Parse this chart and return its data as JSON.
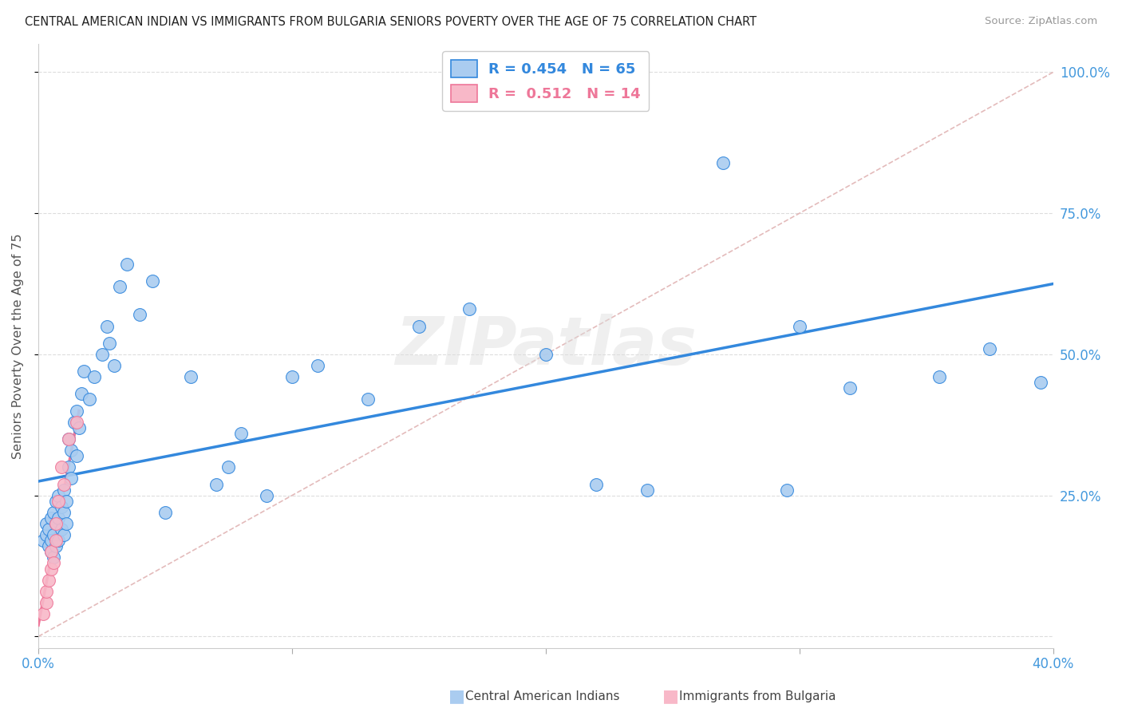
{
  "title": "CENTRAL AMERICAN INDIAN VS IMMIGRANTS FROM BULGARIA SENIORS POVERTY OVER THE AGE OF 75 CORRELATION CHART",
  "source": "Source: ZipAtlas.com",
  "ylabel": "Seniors Poverty Over the Age of 75",
  "y_ticks": [
    0.0,
    0.25,
    0.5,
    0.75,
    1.0
  ],
  "y_tick_labels_right": [
    "",
    "25.0%",
    "50.0%",
    "75.0%",
    "100.0%"
  ],
  "x_range": [
    0.0,
    0.4
  ],
  "y_range": [
    -0.02,
    1.05
  ],
  "legend_r1": "R = 0.454",
  "legend_n1": "N = 65",
  "legend_r2": "R =  0.512",
  "legend_n2": "N = 14",
  "color_blue": "#aaccf0",
  "color_pink": "#f8b8c8",
  "line_blue": "#3388dd",
  "line_pink": "#ee7799",
  "line_diag_color": "#ddaaaa",
  "watermark": "ZIPatlas",
  "blue_x": [
    0.002,
    0.003,
    0.003,
    0.004,
    0.004,
    0.005,
    0.005,
    0.005,
    0.006,
    0.006,
    0.006,
    0.007,
    0.007,
    0.007,
    0.008,
    0.008,
    0.008,
    0.009,
    0.009,
    0.01,
    0.01,
    0.01,
    0.011,
    0.011,
    0.012,
    0.012,
    0.013,
    0.013,
    0.014,
    0.015,
    0.015,
    0.016,
    0.017,
    0.018,
    0.02,
    0.022,
    0.025,
    0.027,
    0.028,
    0.03,
    0.032,
    0.035,
    0.04,
    0.045,
    0.05,
    0.06,
    0.07,
    0.075,
    0.08,
    0.09,
    0.1,
    0.11,
    0.13,
    0.15,
    0.17,
    0.2,
    0.22,
    0.24,
    0.27,
    0.295,
    0.3,
    0.32,
    0.355,
    0.375,
    0.395
  ],
  "blue_y": [
    0.17,
    0.18,
    0.2,
    0.16,
    0.19,
    0.15,
    0.17,
    0.21,
    0.14,
    0.18,
    0.22,
    0.16,
    0.2,
    0.24,
    0.17,
    0.21,
    0.25,
    0.19,
    0.23,
    0.18,
    0.22,
    0.26,
    0.2,
    0.24,
    0.3,
    0.35,
    0.28,
    0.33,
    0.38,
    0.32,
    0.4,
    0.37,
    0.43,
    0.47,
    0.42,
    0.46,
    0.5,
    0.55,
    0.52,
    0.48,
    0.62,
    0.66,
    0.57,
    0.63,
    0.22,
    0.46,
    0.27,
    0.3,
    0.36,
    0.25,
    0.46,
    0.48,
    0.42,
    0.55,
    0.58,
    0.5,
    0.27,
    0.26,
    0.84,
    0.26,
    0.55,
    0.44,
    0.46,
    0.51,
    0.45
  ],
  "pink_x": [
    0.002,
    0.003,
    0.003,
    0.004,
    0.005,
    0.005,
    0.006,
    0.007,
    0.007,
    0.008,
    0.009,
    0.01,
    0.012,
    0.015
  ],
  "pink_y": [
    0.04,
    0.06,
    0.08,
    0.1,
    0.12,
    0.15,
    0.13,
    0.17,
    0.2,
    0.24,
    0.3,
    0.27,
    0.35,
    0.38
  ],
  "blue_line_x": [
    0.0,
    0.4
  ],
  "blue_line_y": [
    0.275,
    0.625
  ],
  "pink_line_x": [
    0.0,
    0.016
  ],
  "pink_line_y": [
    0.02,
    0.4
  ],
  "diag_line_x": [
    0.0,
    0.4
  ],
  "diag_line_y": [
    0.0,
    1.0
  ]
}
